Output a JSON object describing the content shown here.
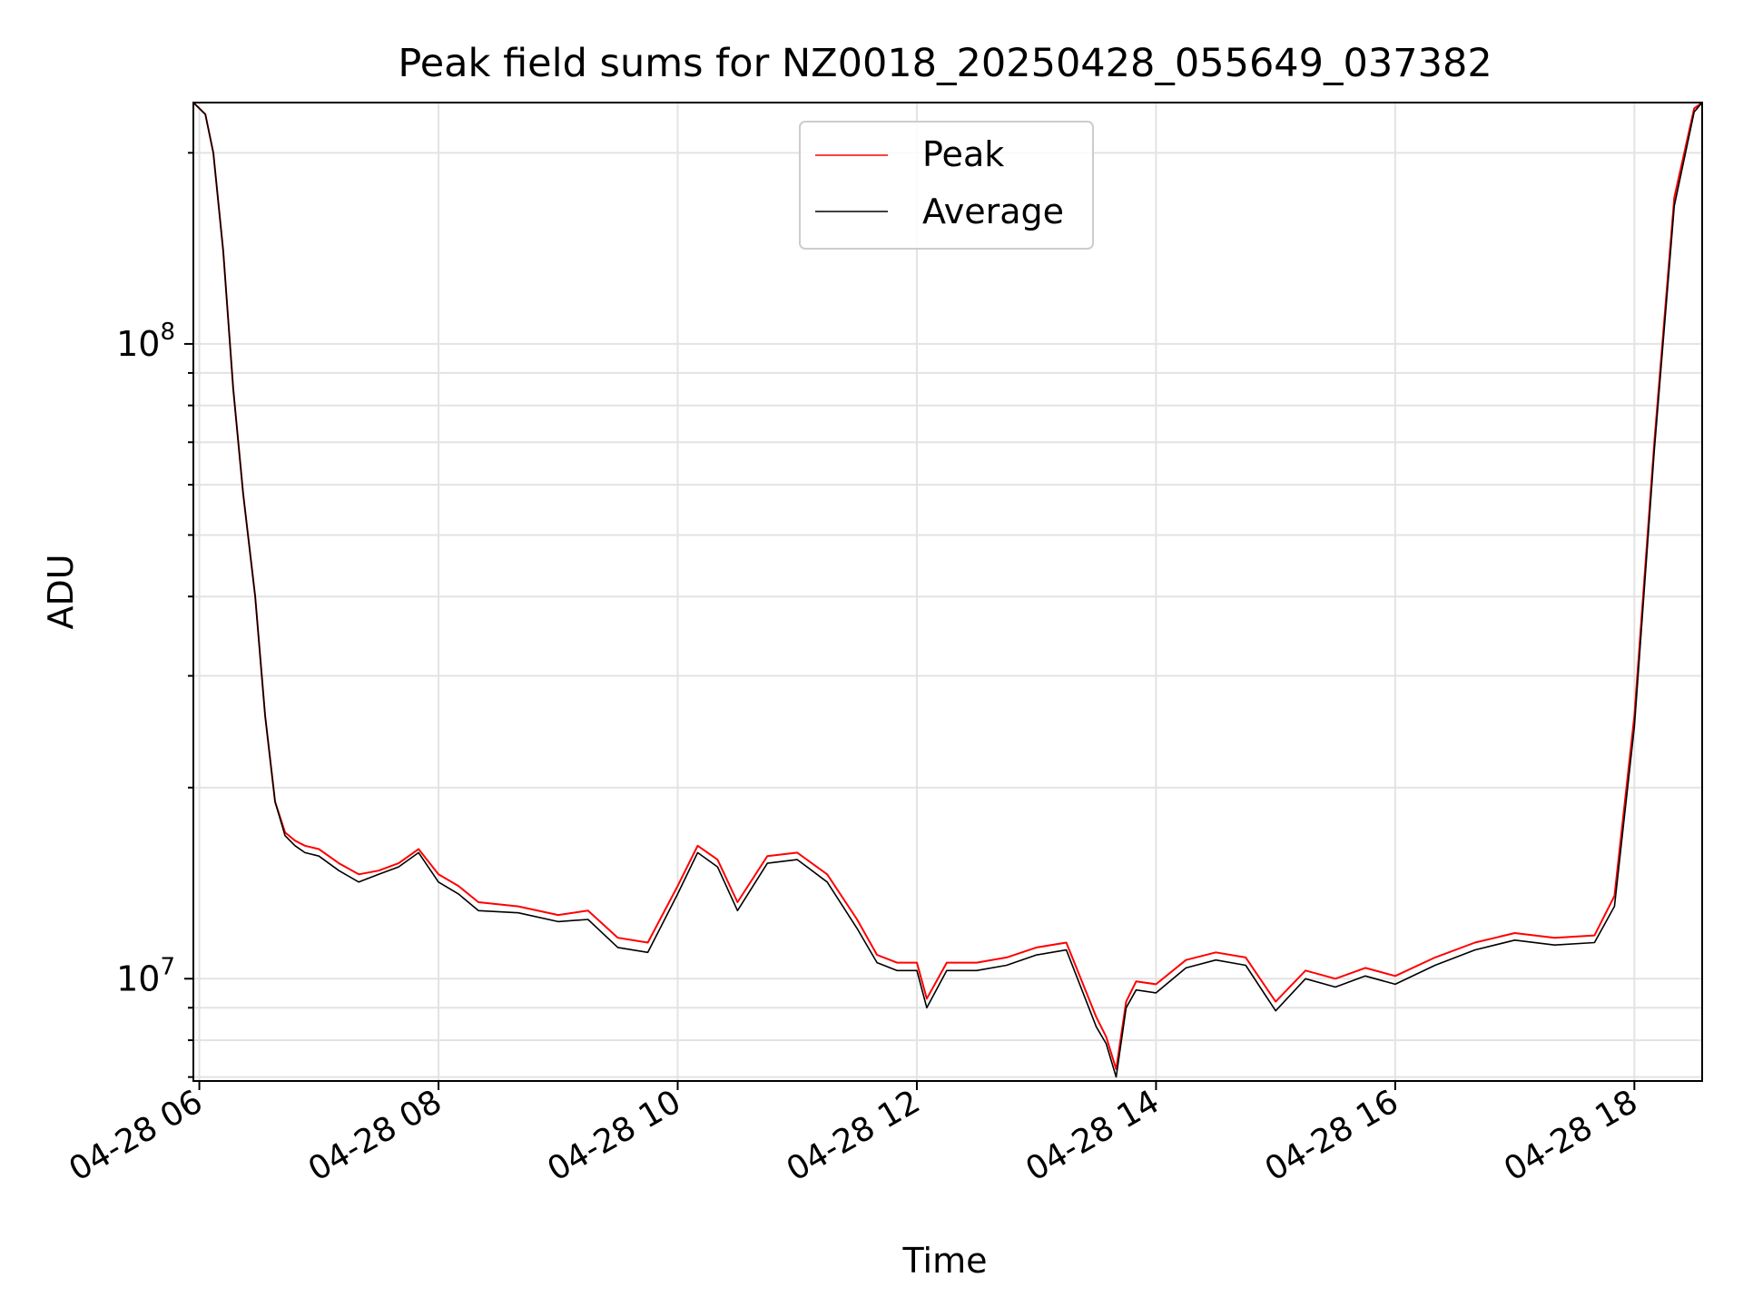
{
  "chart_data": {
    "type": "line",
    "title": "Peak field sums for NZ0018_20250428_055649_037382",
    "xlabel": "Time",
    "ylabel": "ADU",
    "yscale": "log",
    "xlim": [
      "2025-04-28 05:57",
      "2025-04-28 18:34"
    ],
    "ylim": [
      6900000,
      240000000
    ],
    "grid": true,
    "legend_position": "upper center",
    "x_ticks": [
      "04-28 06",
      "04-28 08",
      "04-28 10",
      "04-28 12",
      "04-28 14",
      "04-28 16",
      "04-28 18"
    ],
    "y_ticks": [
      {
        "base": "10",
        "exp": "8"
      },
      {
        "base": "10",
        "exp": "7"
      }
    ],
    "series": [
      {
        "name": "Peak",
        "color": "#ff0000",
        "x": [
          "05:57",
          "06:03",
          "06:07",
          "06:12",
          "06:17",
          "06:22",
          "06:28",
          "06:33",
          "06:38",
          "06:43",
          "06:48",
          "06:53",
          "07:00",
          "07:10",
          "07:20",
          "07:30",
          "07:40",
          "07:50",
          "08:00",
          "08:10",
          "08:20",
          "08:40",
          "09:00",
          "09:15",
          "09:30",
          "09:45",
          "10:00",
          "10:10",
          "10:20",
          "10:30",
          "10:45",
          "11:00",
          "11:15",
          "11:30",
          "11:40",
          "11:50",
          "12:00",
          "12:05",
          "12:15",
          "12:30",
          "12:45",
          "13:00",
          "13:15",
          "13:30",
          "13:35",
          "13:40",
          "13:45",
          "13:50",
          "14:00",
          "14:15",
          "14:30",
          "14:45",
          "15:00",
          "15:15",
          "15:30",
          "15:45",
          "16:00",
          "16:20",
          "16:40",
          "17:00",
          "17:20",
          "17:40",
          "17:50",
          "18:00",
          "18:10",
          "18:20",
          "18:30",
          "18:34"
        ],
        "y": [
          240000000,
          230000000,
          200000000,
          140000000,
          85000000,
          58000000,
          40000000,
          26000000,
          19000000,
          17000000,
          16500000,
          16200000,
          16000000,
          15200000,
          14600000,
          14800000,
          15200000,
          16000000,
          14600000,
          14000000,
          13200000,
          13000000,
          12600000,
          12800000,
          11600000,
          11400000,
          14000000,
          16200000,
          15400000,
          13200000,
          15600000,
          15800000,
          14600000,
          12400000,
          10900000,
          10600000,
          10600000,
          9300000,
          10600000,
          10600000,
          10800000,
          11200000,
          11400000,
          8700000,
          8100000,
          7200000,
          9200000,
          9900000,
          9800000,
          10700000,
          11000000,
          10800000,
          9200000,
          10300000,
          10000000,
          10400000,
          10100000,
          10800000,
          11400000,
          11800000,
          11600000,
          11700000,
          13500000,
          26000000,
          70000000,
          170000000,
          235000000,
          240000000
        ]
      },
      {
        "name": "Average",
        "color": "#000000",
        "x": [
          "05:57",
          "06:03",
          "06:07",
          "06:12",
          "06:17",
          "06:22",
          "06:28",
          "06:33",
          "06:38",
          "06:43",
          "06:48",
          "06:53",
          "07:00",
          "07:10",
          "07:20",
          "07:30",
          "07:40",
          "07:50",
          "08:00",
          "08:10",
          "08:20",
          "08:40",
          "09:00",
          "09:15",
          "09:30",
          "09:45",
          "10:00",
          "10:10",
          "10:20",
          "10:30",
          "10:45",
          "11:00",
          "11:15",
          "11:30",
          "11:40",
          "11:50",
          "12:00",
          "12:05",
          "12:15",
          "12:30",
          "12:45",
          "13:00",
          "13:15",
          "13:30",
          "13:35",
          "13:40",
          "13:45",
          "13:50",
          "14:00",
          "14:15",
          "14:30",
          "14:45",
          "15:00",
          "15:15",
          "15:30",
          "15:45",
          "16:00",
          "16:20",
          "16:40",
          "17:00",
          "17:20",
          "17:40",
          "17:50",
          "18:00",
          "18:10",
          "18:20",
          "18:30",
          "18:34"
        ],
        "y": [
          240000000,
          230000000,
          200000000,
          140000000,
          85000000,
          58000000,
          40000000,
          26000000,
          19000000,
          16800000,
          16200000,
          15800000,
          15600000,
          14800000,
          14200000,
          14600000,
          15000000,
          15800000,
          14200000,
          13600000,
          12800000,
          12700000,
          12300000,
          12400000,
          11200000,
          11000000,
          13600000,
          15800000,
          15000000,
          12800000,
          15200000,
          15400000,
          14200000,
          12000000,
          10600000,
          10300000,
          10300000,
          9000000,
          10300000,
          10300000,
          10500000,
          10900000,
          11100000,
          8400000,
          7900000,
          7000000,
          9000000,
          9600000,
          9500000,
          10400000,
          10700000,
          10500000,
          8900000,
          10000000,
          9700000,
          10100000,
          9800000,
          10500000,
          11100000,
          11500000,
          11300000,
          11400000,
          13000000,
          25000000,
          68000000,
          165000000,
          232000000,
          240000000
        ]
      }
    ]
  }
}
